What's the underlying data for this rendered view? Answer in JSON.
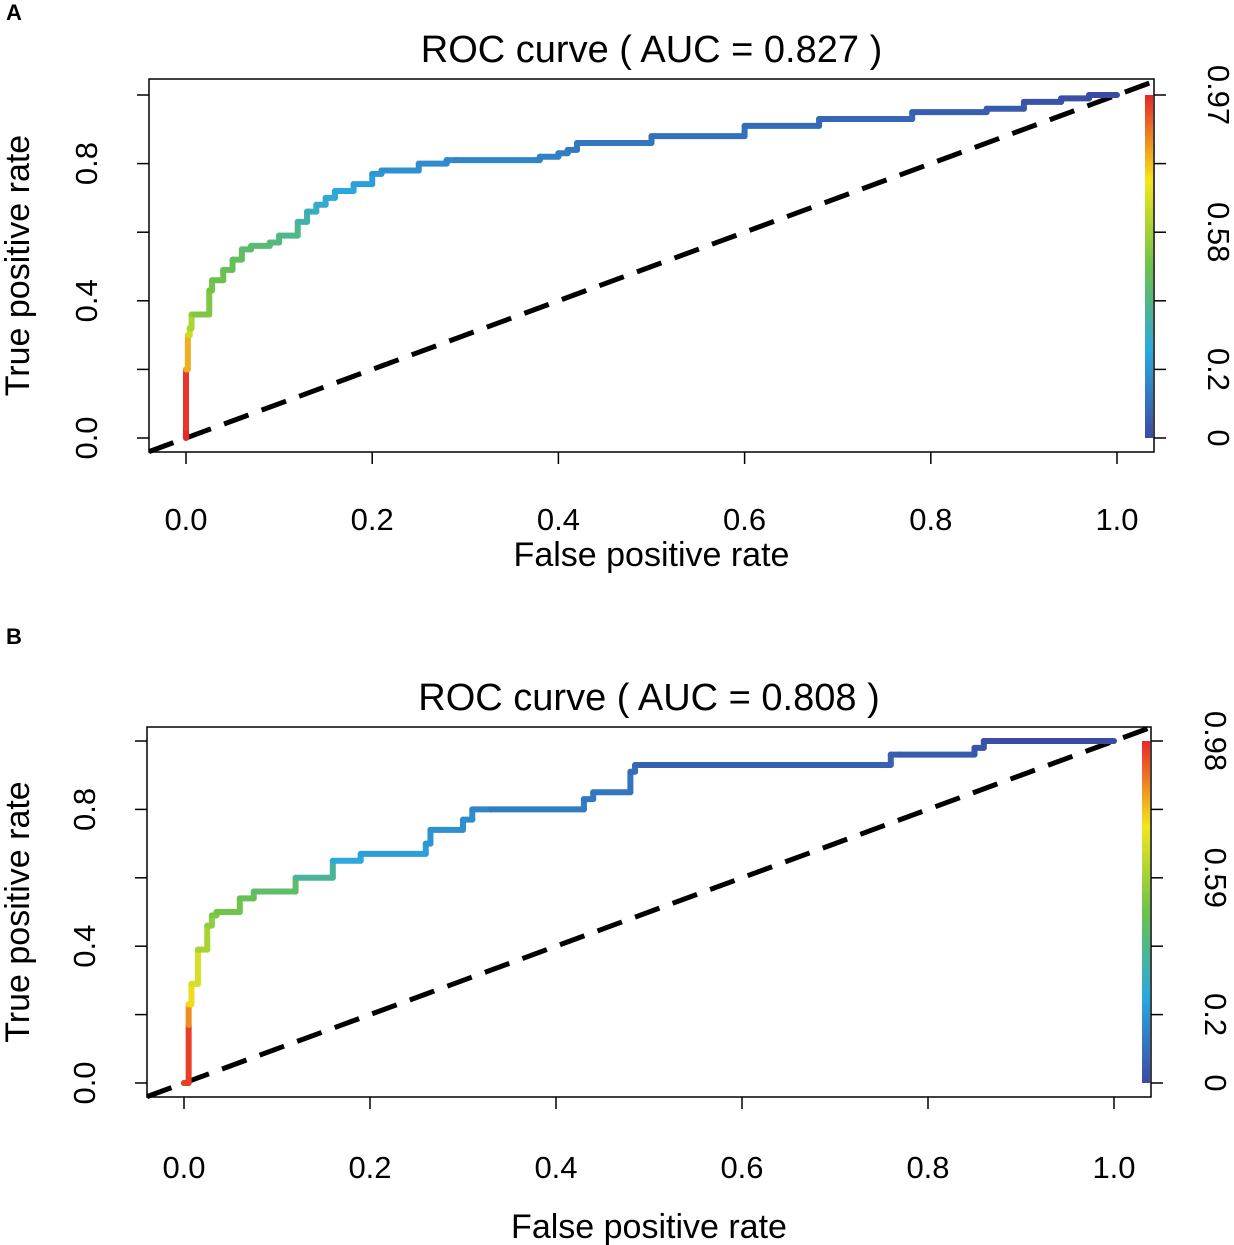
{
  "chart_data": [
    {
      "panel": "A",
      "type": "line",
      "title": "ROC curve ( AUC =  0.827 )",
      "xlabel": "False positive rate",
      "ylabel": "True positive rate",
      "xlim": [
        0,
        1
      ],
      "ylim": [
        0,
        1
      ],
      "x_ticks": [
        "0.0",
        "0.2",
        "0.4",
        "0.6",
        "0.8",
        "1.0"
      ],
      "y_ticks": [
        "0.0",
        "0.4",
        "0.8"
      ],
      "colorbar_labels": [
        "0",
        "0.2",
        "0.58",
        "0.97"
      ],
      "colorbar_colors": [
        "#3b4ba3",
        "#2aa8e0",
        "#6cc24a",
        "#f2e71a",
        "#e8262a"
      ],
      "diagonal": "dashed",
      "series": [
        {
          "name": "ROC",
          "x": [
            0,
            0,
            0.002,
            0.004,
            0.006,
            0.01,
            0.025,
            0.028,
            0.04,
            0.05,
            0.06,
            0.07,
            0.09,
            0.1,
            0.12,
            0.13,
            0.14,
            0.15,
            0.16,
            0.18,
            0.2,
            0.21,
            0.25,
            0.28,
            0.29,
            0.38,
            0.4,
            0.41,
            0.42,
            0.5,
            0.6,
            0.68,
            0.78,
            0.86,
            0.9,
            0.94,
            0.97,
            1.0
          ],
          "y": [
            0,
            0.03,
            0.2,
            0.3,
            0.32,
            0.36,
            0.36,
            0.43,
            0.46,
            0.49,
            0.52,
            0.55,
            0.56,
            0.57,
            0.59,
            0.63,
            0.66,
            0.68,
            0.7,
            0.72,
            0.74,
            0.77,
            0.78,
            0.8,
            0.81,
            0.81,
            0.82,
            0.83,
            0.84,
            0.86,
            0.88,
            0.91,
            0.93,
            0.95,
            0.96,
            0.98,
            0.99,
            1.0
          ],
          "score": [
            0.97,
            0.95,
            0.8,
            0.65,
            0.6,
            0.55,
            0.52,
            0.5,
            0.48,
            0.47,
            0.45,
            0.43,
            0.42,
            0.4,
            0.38,
            0.33,
            0.3,
            0.28,
            0.26,
            0.24,
            0.22,
            0.2,
            0.18,
            0.17,
            0.16,
            0.15,
            0.14,
            0.13,
            0.12,
            0.11,
            0.1,
            0.08,
            0.07,
            0.05,
            0.04,
            0.02,
            0.01,
            0
          ]
        }
      ]
    },
    {
      "panel": "B",
      "type": "line",
      "title": "ROC curve ( AUC =  0.808 )",
      "xlabel": "False positive rate",
      "ylabel": "True positive rate",
      "xlim": [
        0,
        1
      ],
      "ylim": [
        0,
        1
      ],
      "x_ticks": [
        "0.0",
        "0.2",
        "0.4",
        "0.6",
        "0.8",
        "1.0"
      ],
      "y_ticks": [
        "0.0",
        "0.4",
        "0.8"
      ],
      "colorbar_labels": [
        "0",
        "0.2",
        "0.59",
        "0.98"
      ],
      "colorbar_colors": [
        "#3b4ba3",
        "#2aa8e0",
        "#6cc24a",
        "#f2e71a",
        "#e8262a"
      ],
      "diagonal": "dashed",
      "series": [
        {
          "name": "ROC",
          "x": [
            0,
            0.005,
            0.005,
            0.008,
            0.015,
            0.025,
            0.03,
            0.035,
            0.06,
            0.075,
            0.12,
            0.16,
            0.19,
            0.26,
            0.265,
            0.3,
            0.31,
            0.33,
            0.43,
            0.44,
            0.48,
            0.485,
            0.49,
            0.76,
            0.77,
            0.85,
            0.86,
            0.88,
            1.0
          ],
          "y": [
            0,
            0.0,
            0.17,
            0.23,
            0.29,
            0.39,
            0.46,
            0.49,
            0.5,
            0.54,
            0.56,
            0.6,
            0.65,
            0.67,
            0.7,
            0.74,
            0.77,
            0.8,
            0.8,
            0.83,
            0.85,
            0.91,
            0.93,
            0.93,
            0.96,
            0.96,
            0.98,
            1.0,
            1.0
          ],
          "score": [
            0.98,
            0.95,
            0.85,
            0.75,
            0.68,
            0.6,
            0.56,
            0.52,
            0.5,
            0.47,
            0.44,
            0.36,
            0.25,
            0.22,
            0.2,
            0.18,
            0.17,
            0.15,
            0.13,
            0.12,
            0.11,
            0.09,
            0.08,
            0.06,
            0.05,
            0.04,
            0.03,
            0.01,
            0
          ]
        }
      ]
    }
  ]
}
